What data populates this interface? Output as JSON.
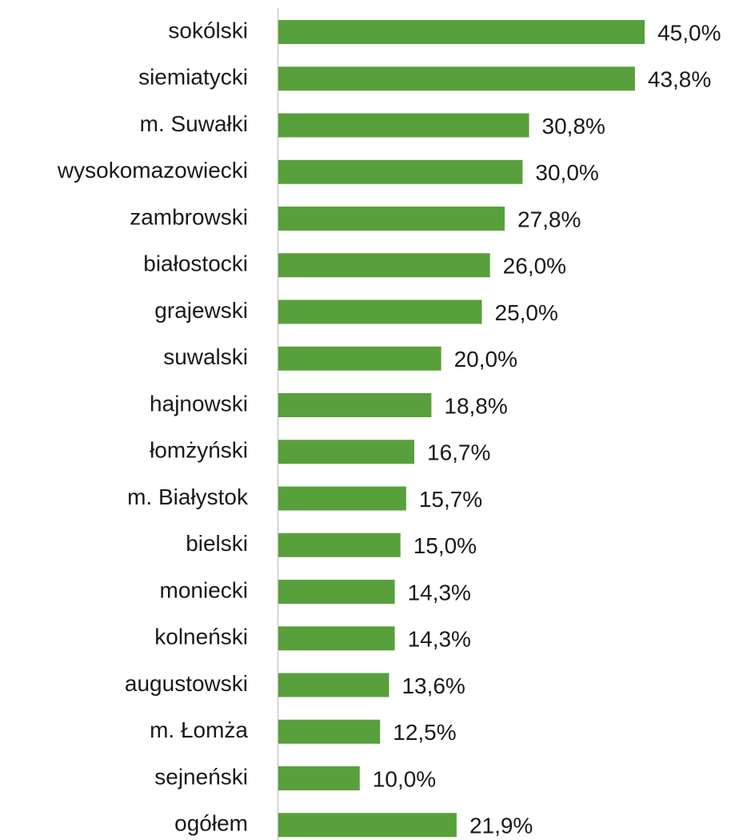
{
  "chart_data": {
    "type": "bar",
    "orientation": "horizontal",
    "categories": [
      "sokólski",
      "siemiatycki",
      "m. Suwałki",
      "wysokomazowiecki",
      "zambrowski",
      "białostocki",
      "grajewski",
      "suwalski",
      "hajnowski",
      "łomżyński",
      "m. Białystok",
      "bielski",
      "moniecki",
      "kolneński",
      "augustowski",
      "m. Łomża",
      "sejneński",
      "ogółem"
    ],
    "values": [
      45.0,
      43.8,
      30.8,
      30.0,
      27.8,
      26.0,
      25.0,
      20.0,
      18.8,
      16.7,
      15.7,
      15.0,
      14.3,
      14.3,
      13.6,
      12.5,
      10.0,
      21.9
    ],
    "value_labels": [
      "45,0%",
      "43,8%",
      "30,8%",
      "30,0%",
      "27,8%",
      "26,0%",
      "25,0%",
      "20,0%",
      "18,8%",
      "16,7%",
      "15,7%",
      "15,0%",
      "14,3%",
      "14,3%",
      "13,6%",
      "12,5%",
      "10,0%",
      "21,9%"
    ],
    "color": "#58a03c"
  }
}
